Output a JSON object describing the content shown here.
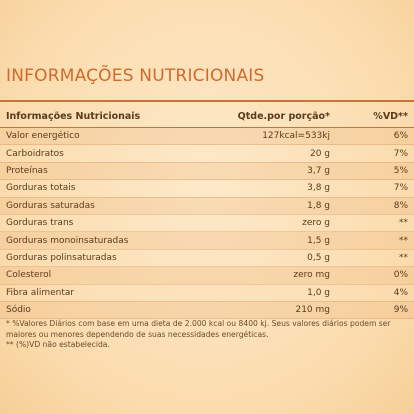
{
  "title": "INFORMAÇÕES NUTRICIONAIS",
  "table": {
    "headers": [
      "Informações Nutricionais",
      "Qtde.por porção*",
      "%VD**"
    ],
    "rows": [
      [
        "Valor energético",
        "127kcal=533kj",
        "6%"
      ],
      [
        "Carboidratos",
        "20 g",
        "7%"
      ],
      [
        "Proteínas",
        "3,7 g",
        "5%"
      ],
      [
        "Gorduras totais",
        "3,8 g",
        "7%"
      ],
      [
        "Gorduras saturadas",
        "1,8 g",
        "8%"
      ],
      [
        "Gorduras trans",
        "zero g",
        "**"
      ],
      [
        "Gorduras monoinsaturadas",
        "1,5 g",
        "**"
      ],
      [
        "Gorduras polinsaturadas",
        "0,5 g",
        "**"
      ],
      [
        "Colesterol",
        "zero mg",
        "0%"
      ],
      [
        "Fibra alimentar",
        "1,0 g",
        "4%"
      ],
      [
        "Sódio",
        "210 mg",
        "9%"
      ]
    ]
  },
  "footnotes": [
    "* %Valores Diários com base em uma dieta de 2.000 kcal ou 8400 kj. Seus valores diários podem ser maiores ou menores dependendo de suas necessidades energéticas.",
    "** (%)VD não estabelecida."
  ]
}
